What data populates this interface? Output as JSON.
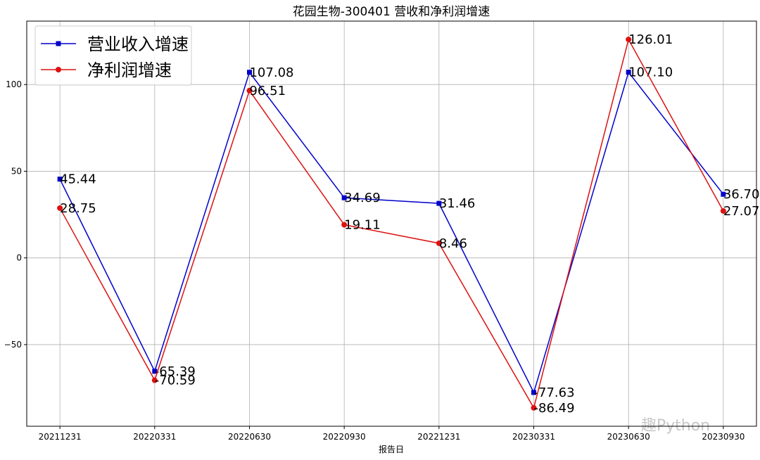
{
  "chart_data": {
    "type": "line",
    "title": "花园生物-300401 营收和净利润增速",
    "x_label": "报告日",
    "watermark": "趣Python",
    "categories": [
      "20211231",
      "20220331",
      "20220630",
      "20220930",
      "20221231",
      "20230331",
      "20230630",
      "20230930"
    ],
    "series": [
      {
        "name": "营业收入增速",
        "color": "#0000cc",
        "marker": "square",
        "values": [
          45.44,
          -65.39,
          107.08,
          34.69,
          31.46,
          -77.63,
          107.1,
          36.7
        ],
        "value_labels": [
          "45.44",
          "-65.39",
          "107.08",
          "34.69",
          "31.46",
          "-77.63",
          "107.10",
          "36.70"
        ]
      },
      {
        "name": "净利润增速",
        "color": "#dd1111",
        "marker": "circle",
        "values": [
          28.75,
          -70.59,
          96.51,
          19.11,
          8.46,
          -86.49,
          126.01,
          27.07
        ],
        "value_labels": [
          "28.75",
          "-70.59",
          "96.51",
          "19.11",
          "8.46",
          "-86.49",
          "126.01",
          "27.07"
        ]
      }
    ],
    "ylim": [
      -97.1,
      136.6
    ],
    "yticks": [
      {
        "value": -50,
        "label": "−50"
      },
      0,
      50,
      100
    ],
    "grid": true,
    "legend": "upper left"
  }
}
